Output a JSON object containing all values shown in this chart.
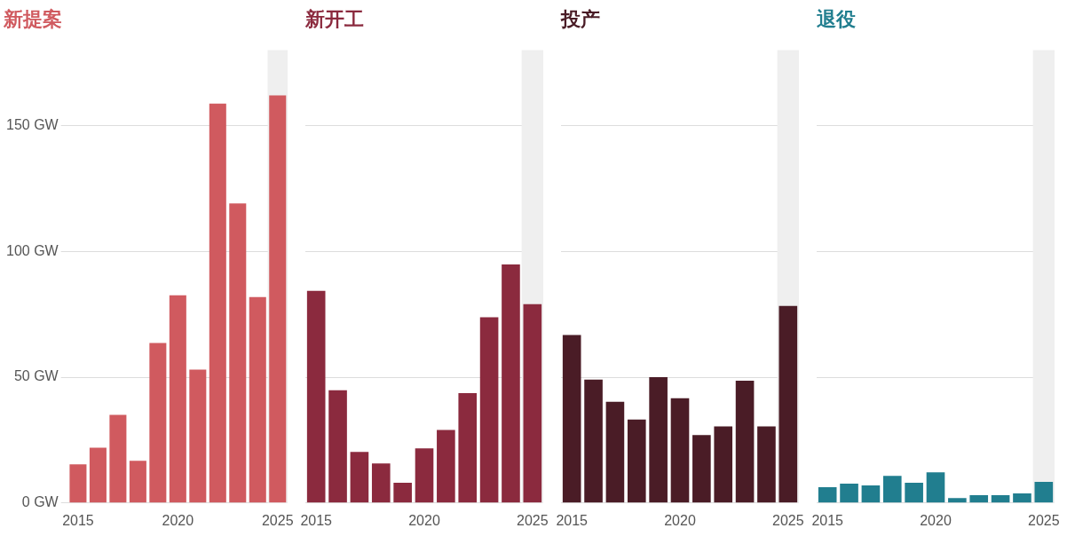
{
  "chart_data": [
    {
      "type": "bar",
      "title": "新提案",
      "categories": [
        "2015",
        null,
        null,
        null,
        null,
        "2020",
        null,
        null,
        null,
        null,
        "2025"
      ],
      "series": [
        {
          "color": "#d05a5f",
          "values": [
            15.4,
            22,
            35,
            16.8,
            63.6,
            82.5,
            53,
            158.7,
            119,
            81.8,
            162
          ]
        }
      ],
      "ylim": [
        0,
        180
      ],
      "yticks": [
        {
          "value": 0,
          "label": "0 GW"
        },
        {
          "value": 50,
          "label": "50 GW"
        },
        {
          "value": 100,
          "label": "100 GW"
        },
        {
          "value": 150,
          "label": "150 GW"
        }
      ],
      "grid": "y",
      "legend": false,
      "bands": [
        {
          "axis": "x",
          "from": "2025",
          "to": "2025",
          "color": "#efefef"
        }
      ]
    },
    {
      "type": "bar",
      "title": "新开工",
      "categories": [
        "2015",
        null,
        null,
        null,
        null,
        "2020",
        null,
        null,
        null,
        null,
        "2025"
      ],
      "series": [
        {
          "color": "#8b2a3e",
          "values": [
            84.3,
            44.8,
            20.3,
            15.7,
            8,
            21.7,
            29,
            43.7,
            73.8,
            94.8,
            79
          ]
        }
      ],
      "ylim": [
        0,
        180
      ],
      "yticks": [
        0,
        50,
        100,
        150
      ],
      "tick_labels": "x",
      "grid": "y",
      "legend": false,
      "bands": [
        {
          "axis": "x",
          "from": "2025",
          "to": "2025",
          "color": "#efefef"
        }
      ]
    },
    {
      "type": "bar",
      "title": "投产",
      "categories": [
        "2015",
        null,
        null,
        null,
        null,
        "2020",
        null,
        null,
        null,
        null,
        "2025"
      ],
      "series": [
        {
          "color": "#4a1c26",
          "values": [
            66.8,
            49,
            40.2,
            33.2,
            50,
            41.6,
            27,
            30.4,
            48.6,
            30.4,
            78.3
          ]
        }
      ],
      "ylim": [
        0,
        180
      ],
      "yticks": [
        0,
        50,
        100,
        150
      ],
      "tick_labels": "x",
      "grid": "y",
      "legend": false,
      "bands": [
        {
          "axis": "x",
          "from": "2025",
          "to": "2025",
          "color": "#efefef"
        }
      ]
    },
    {
      "type": "bar",
      "title": "退役",
      "categories": [
        "2015",
        null,
        null,
        null,
        null,
        "2020",
        null,
        null,
        null,
        null,
        "2025"
      ],
      "series": [
        {
          "color": "#217e8f",
          "values": [
            6.3,
            7.7,
            7,
            10.8,
            8,
            12.2,
            2,
            3.1,
            3.1,
            3.8,
            8.4
          ]
        }
      ],
      "ylim": [
        0,
        180
      ],
      "yticks": [
        0,
        50,
        100,
        150
      ],
      "tick_labels": "x",
      "grid": "y",
      "legend": false,
      "bands": [
        {
          "axis": "x",
          "from": "2025",
          "to": "2025",
          "color": "#efefef"
        }
      ]
    }
  ]
}
